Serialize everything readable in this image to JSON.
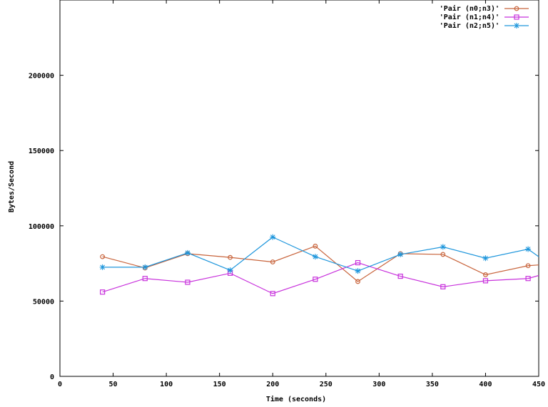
{
  "chart_data": {
    "type": "line",
    "xlabel": "Time (seconds)",
    "ylabel": "Bytes/Second",
    "xlim": [
      0,
      450
    ],
    "ylim": [
      0,
      250000
    ],
    "x_ticks": [
      0,
      50,
      100,
      150,
      200,
      250,
      300,
      350,
      400,
      450
    ],
    "y_ticks": [
      0,
      50000,
      100000,
      150000,
      200000
    ],
    "grid": false,
    "legend": "top-right",
    "series": [
      {
        "name": "'Pair (n0;n3)'",
        "color": "#c8643c",
        "marker": "circle",
        "x": [
          40,
          80,
          120,
          160,
          200,
          240,
          280,
          320,
          360,
          400,
          440,
          450
        ],
        "y": [
          79500,
          72000,
          81500,
          79000,
          76000,
          86500,
          63000,
          81500,
          81000,
          67500,
          73500,
          74000
        ]
      },
      {
        "name": "'Pair (n1;n4)'",
        "color": "#c832dc",
        "marker": "square",
        "x": [
          40,
          80,
          120,
          160,
          200,
          240,
          280,
          320,
          360,
          400,
          440,
          450
        ],
        "y": [
          56000,
          65000,
          62500,
          68500,
          55000,
          64500,
          75500,
          66500,
          59500,
          63500,
          65000,
          67000
        ]
      },
      {
        "name": "'Pair (n2;n5)'",
        "color": "#1e96dc",
        "marker": "star",
        "x": [
          40,
          80,
          120,
          160,
          200,
          240,
          280,
          320,
          360,
          400,
          440,
          450
        ],
        "y": [
          72500,
          72500,
          82000,
          70500,
          92500,
          79500,
          70000,
          81000,
          86000,
          78500,
          84500,
          79500
        ]
      }
    ]
  }
}
